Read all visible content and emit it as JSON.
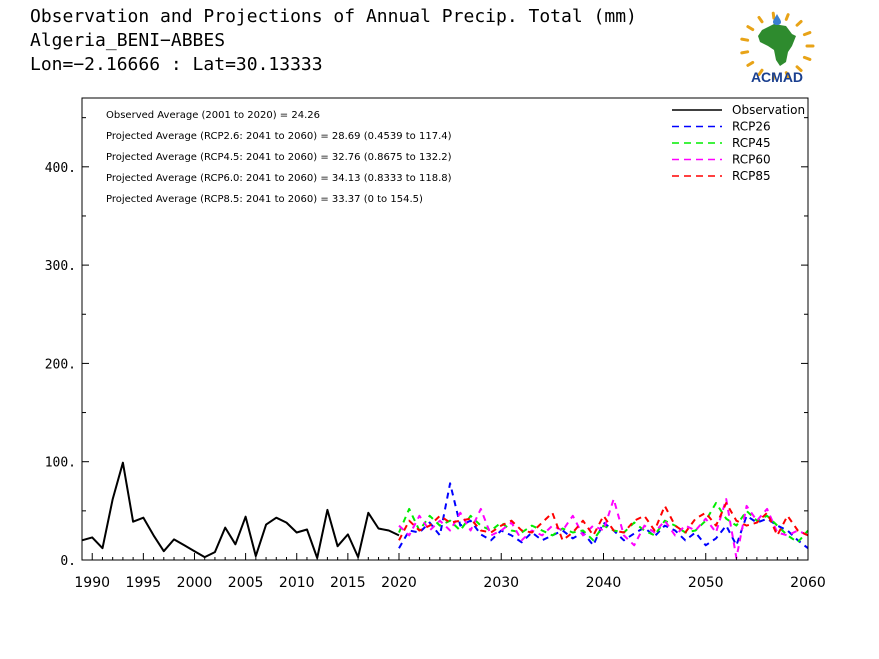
{
  "header": {
    "title": "Observation and Projections of Annual Precip. Total (mm)",
    "location": "Algeria_BENI−ABBES",
    "coords": "Lon=−2.16666 : Lat=30.13333"
  },
  "logo": {
    "text": "ACMAD",
    "icon": "africa-map-logo-icon",
    "color": "#1a3f8f",
    "accent": "#e8a317"
  },
  "annotations": [
    "Observed Average (2001 to 2020) = 24.26",
    "Projected Average (RCP2.6: 2041 to 2060) = 28.69 (0.4539 to 117.4)",
    "Projected Average (RCP4.5: 2041 to 2060) = 32.76 (0.8675 to 132.2)",
    "Projected Average (RCP6.0: 2041 to 2060) = 34.13 (0.8333 to 118.8)",
    "Projected Average (RCP8.5: 2041 to 2060) = 33.37 (0 to 154.5)"
  ],
  "chart_data": {
    "type": "line",
    "title": "Observation and Projections of Annual Precip. Total (mm)",
    "xlim": [
      1989,
      2060
    ],
    "ylim": [
      0,
      470
    ],
    "xticks": [
      1990,
      1995,
      2000,
      2005,
      2010,
      2015,
      2020,
      2030,
      2040,
      2050,
      2060
    ],
    "yticks": [
      0,
      100,
      200,
      300,
      400
    ],
    "ytick_labels": [
      "0.",
      "100.",
      "200.",
      "300.",
      "400."
    ],
    "legend_position": "top-right",
    "series": [
      {
        "name": "Observation",
        "color": "#000000",
        "dash": false,
        "x": [
          1989,
          1990,
          1991,
          1992,
          1993,
          1994,
          1995,
          1996,
          1997,
          1998,
          1999,
          2000,
          2001,
          2002,
          2003,
          2004,
          2005,
          2006,
          2007,
          2008,
          2009,
          2010,
          2011,
          2012,
          2013,
          2014,
          2015,
          2016,
          2017,
          2018,
          2019,
          2020
        ],
        "values": [
          20,
          23,
          12,
          62,
          99,
          39,
          43,
          25,
          9,
          21,
          15,
          9,
          3,
          8,
          33,
          16,
          44,
          4,
          36,
          43,
          38,
          28,
          31,
          2,
          51,
          14,
          26,
          3,
          48,
          32,
          30,
          25
        ]
      },
      {
        "name": "RCP26",
        "color": "#0000ff",
        "dash": true,
        "x": [
          2020,
          2021,
          2022,
          2023,
          2024,
          2025,
          2026,
          2027,
          2028,
          2029,
          2030,
          2031,
          2032,
          2033,
          2034,
          2035,
          2036,
          2037,
          2038,
          2039,
          2040,
          2041,
          2042,
          2043,
          2044,
          2045,
          2046,
          2047,
          2048,
          2049,
          2050,
          2051,
          2052,
          2053,
          2054,
          2055,
          2056,
          2057,
          2058,
          2059,
          2060
        ],
        "values": [
          12,
          30,
          28,
          38,
          25,
          78,
          35,
          40,
          26,
          20,
          30,
          25,
          18,
          28,
          20,
          25,
          30,
          22,
          28,
          15,
          38,
          30,
          20,
          27,
          33,
          24,
          35,
          30,
          20,
          28,
          15,
          22,
          35,
          15,
          45,
          38,
          42,
          35,
          30,
          20,
          12
        ]
      },
      {
        "name": "RCP45",
        "color": "#00ee00",
        "dash": true,
        "x": [
          2020,
          2021,
          2022,
          2023,
          2024,
          2025,
          2026,
          2027,
          2028,
          2029,
          2030,
          2031,
          2032,
          2033,
          2034,
          2035,
          2036,
          2037,
          2038,
          2039,
          2040,
          2041,
          2042,
          2043,
          2044,
          2045,
          2046,
          2047,
          2048,
          2049,
          2050,
          2051,
          2052,
          2053,
          2054,
          2055,
          2056,
          2057,
          2058,
          2059,
          2060
        ],
        "values": [
          28,
          52,
          30,
          45,
          35,
          40,
          30,
          45,
          35,
          30,
          38,
          30,
          28,
          35,
          30,
          25,
          32,
          28,
          30,
          20,
          35,
          30,
          28,
          38,
          30,
          25,
          40,
          35,
          28,
          30,
          40,
          58,
          42,
          35,
          50,
          40,
          45,
          35,
          25,
          18,
          30
        ]
      },
      {
        "name": "RCP60",
        "color": "#ff00ff",
        "dash": true,
        "x": [
          2020,
          2021,
          2022,
          2023,
          2024,
          2025,
          2026,
          2027,
          2028,
          2029,
          2030,
          2031,
          2032,
          2033,
          2034,
          2035,
          2036,
          2037,
          2038,
          2039,
          2040,
          2041,
          2042,
          2043,
          2044,
          2045,
          2046,
          2047,
          2048,
          2049,
          2050,
          2051,
          2052,
          2053,
          2054,
          2055,
          2056,
          2057,
          2058,
          2059,
          2060
        ],
        "values": [
          35,
          25,
          45,
          30,
          40,
          30,
          48,
          30,
          52,
          25,
          30,
          38,
          20,
          30,
          25,
          35,
          30,
          45,
          25,
          35,
          30,
          62,
          25,
          15,
          35,
          28,
          40,
          25,
          35,
          30,
          42,
          28,
          62,
          2,
          55,
          40,
          52,
          28,
          25,
          30,
          25
        ]
      },
      {
        "name": "RCP85",
        "color": "#ff0000",
        "dash": true,
        "x": [
          2020,
          2021,
          2022,
          2023,
          2024,
          2025,
          2026,
          2027,
          2028,
          2029,
          2030,
          2031,
          2032,
          2033,
          2034,
          2035,
          2036,
          2037,
          2038,
          2039,
          2040,
          2041,
          2042,
          2043,
          2044,
          2045,
          2046,
          2047,
          2048,
          2049,
          2050,
          2051,
          2052,
          2053,
          2054,
          2055,
          2056,
          2057,
          2058,
          2059,
          2060
        ],
        "values": [
          20,
          40,
          30,
          35,
          45,
          38,
          40,
          42,
          30,
          28,
          35,
          40,
          30,
          28,
          38,
          48,
          20,
          28,
          40,
          25,
          45,
          30,
          28,
          40,
          45,
          30,
          55,
          35,
          28,
          42,
          48,
          35,
          58,
          40,
          35,
          38,
          48,
          25,
          45,
          30,
          25
        ]
      }
    ]
  }
}
